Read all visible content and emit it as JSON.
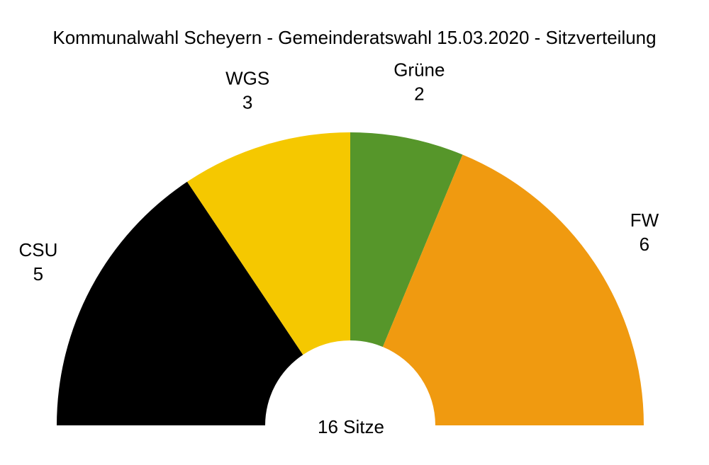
{
  "chart_data": {
    "type": "pie",
    "title": "Kommunalwahl Scheyern - Gemeinderatswahl 15.03.2020 - Sitzverteilung",
    "categories": [
      "CSU",
      "WGS",
      "Grüne",
      "FW"
    ],
    "values": [
      5,
      3,
      2,
      6
    ],
    "colors": [
      "#000000",
      "#f5c800",
      "#56962a",
      "#f09a10"
    ],
    "total_label": "16 Sitze",
    "style": "half-donut (parliament)"
  }
}
